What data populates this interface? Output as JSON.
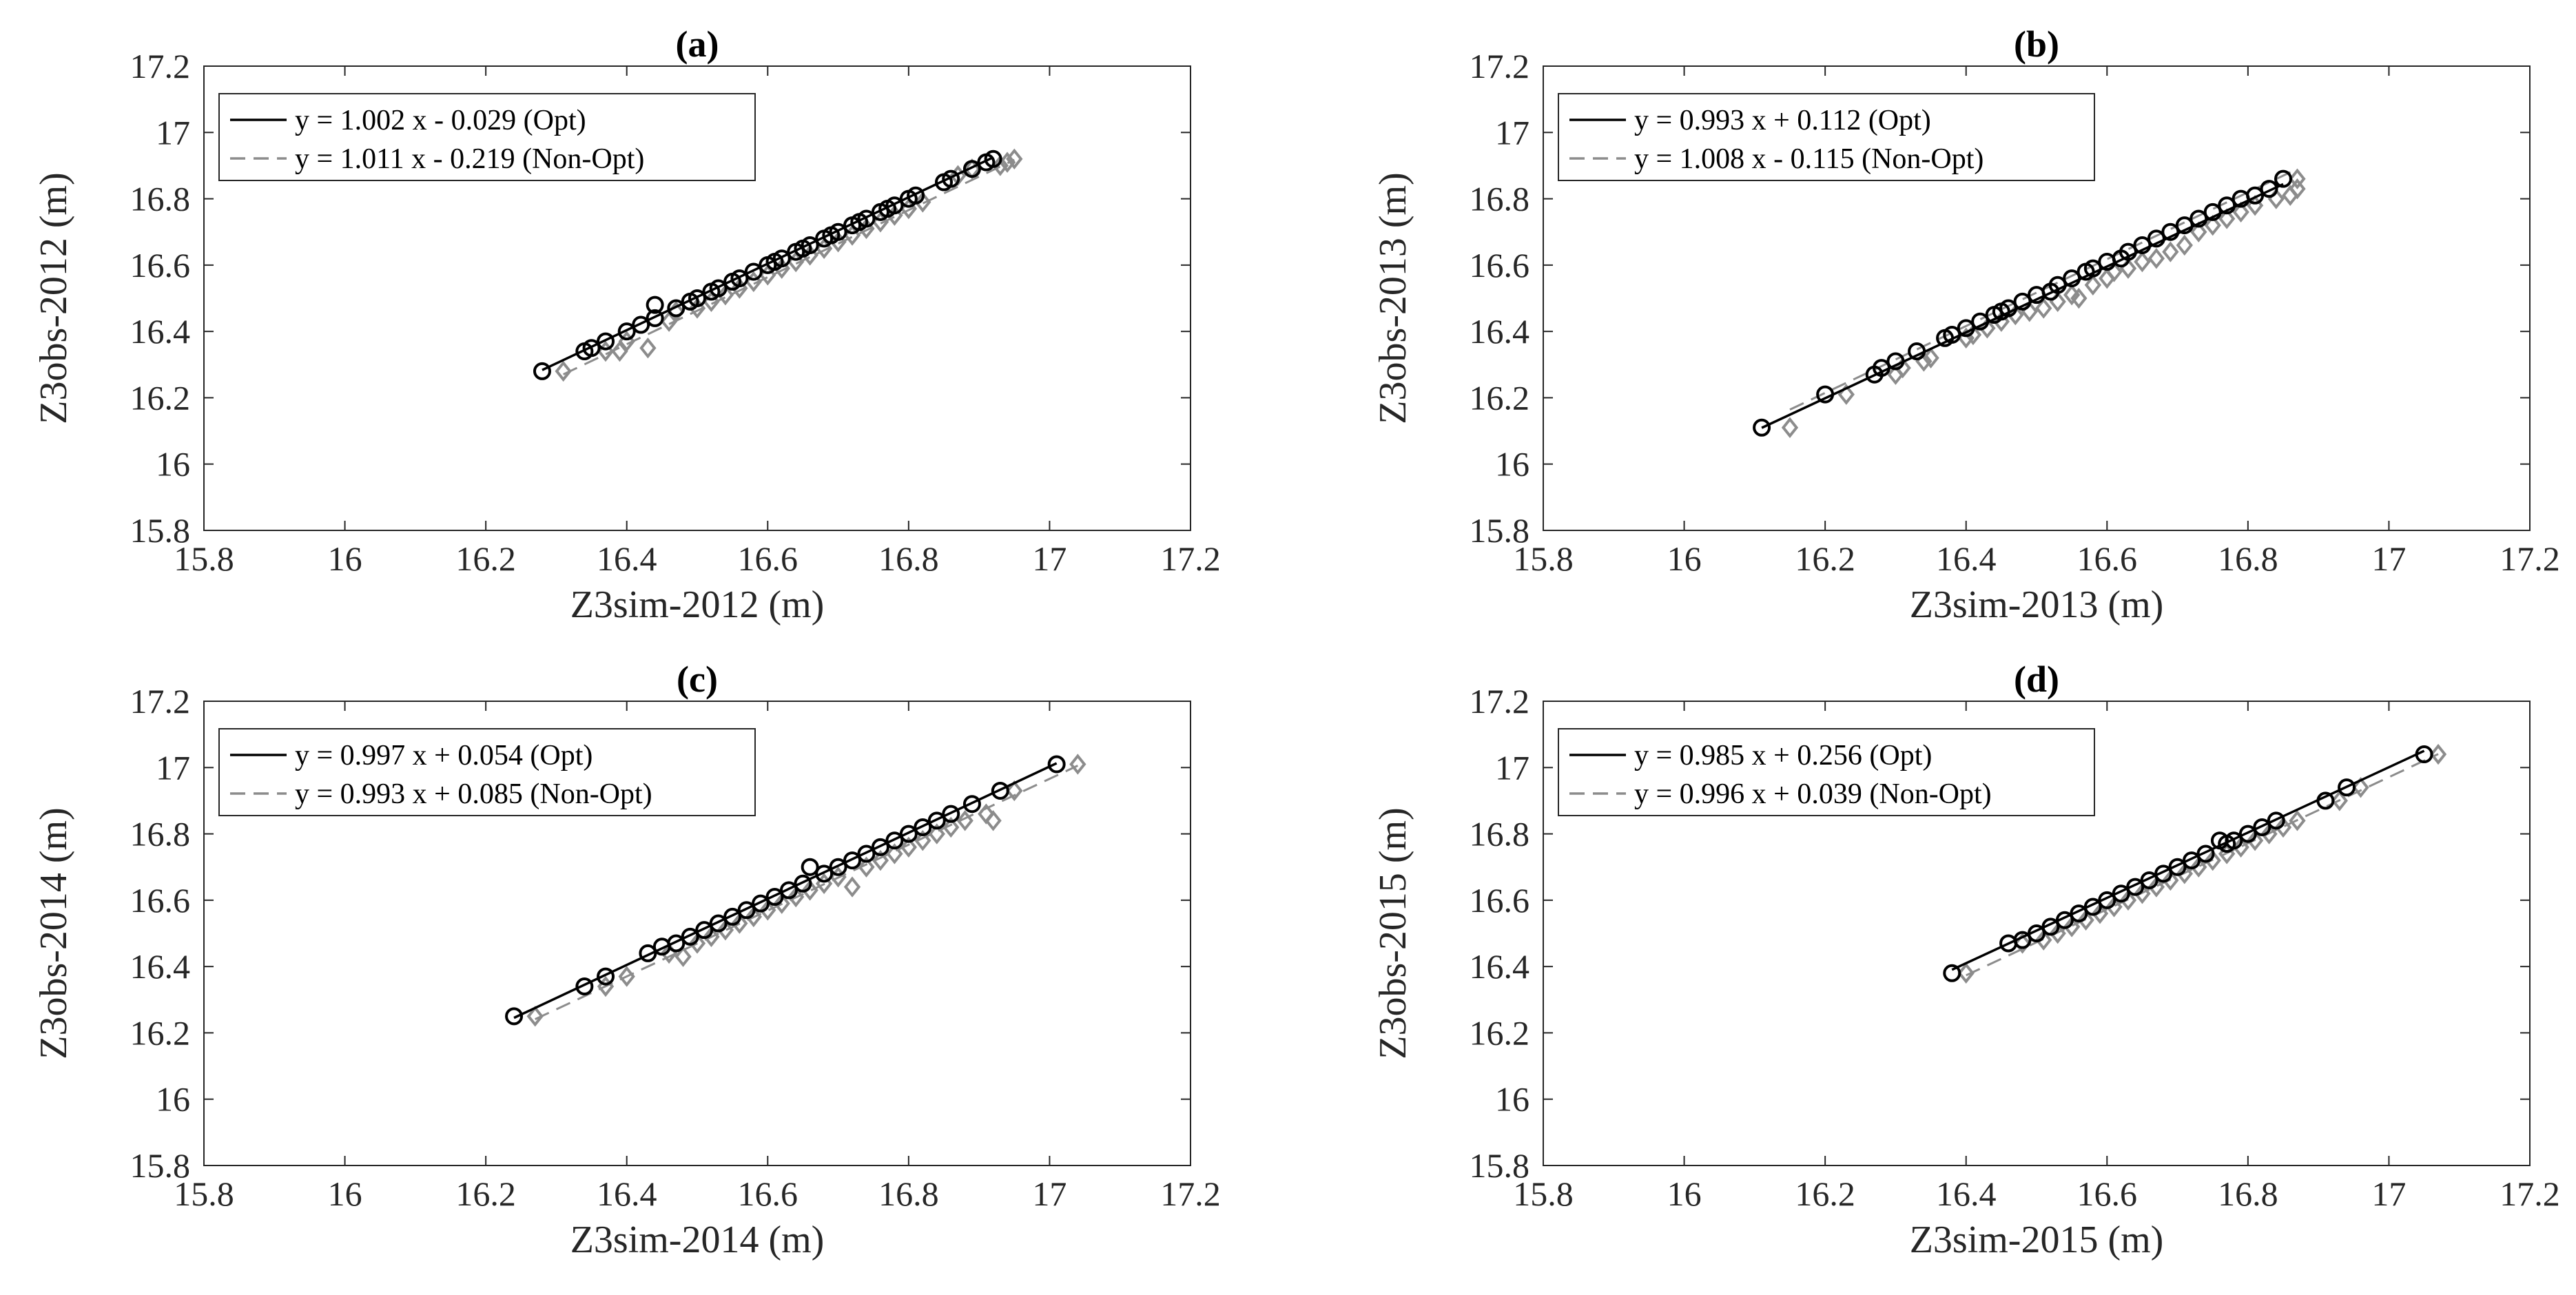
{
  "figure": {
    "description_free": true
  },
  "chart_data": [
    {
      "type": "scatter",
      "panel": "(a)",
      "title": "(a)",
      "xlabel": "Z3sim-2012 (m)",
      "ylabel": "Z3obs-2012 (m)",
      "xlim": [
        15.8,
        17.2
      ],
      "ylim": [
        15.8,
        17.2
      ],
      "ticks": [
        "15.8",
        "16",
        "16.2",
        "16.4",
        "16.6",
        "16.8",
        "17",
        "17.2"
      ],
      "legend_location": "top-left",
      "series": [
        {
          "name": "Opt",
          "marker": "circle",
          "color": "#000000",
          "fit_label": "y = 1.002 x - 0.029 (Opt)",
          "slope": 1.002,
          "intercept": -0.029,
          "line_style": "solid",
          "x": [
            16.28,
            16.34,
            16.35,
            16.37,
            16.4,
            16.42,
            16.44,
            16.44,
            16.47,
            16.49,
            16.5,
            16.52,
            16.53,
            16.55,
            16.56,
            16.58,
            16.6,
            16.61,
            16.62,
            16.64,
            16.65,
            16.66,
            16.68,
            16.69,
            16.7,
            16.72,
            16.73,
            16.74,
            16.76,
            16.77,
            16.78,
            16.8,
            16.81,
            16.85,
            16.86,
            16.89,
            16.91,
            16.92
          ],
          "y": [
            16.28,
            16.34,
            16.35,
            16.37,
            16.4,
            16.42,
            16.48,
            16.44,
            16.47,
            16.49,
            16.5,
            16.52,
            16.53,
            16.55,
            16.56,
            16.58,
            16.6,
            16.61,
            16.62,
            16.64,
            16.65,
            16.66,
            16.68,
            16.69,
            16.7,
            16.72,
            16.73,
            16.74,
            16.76,
            16.77,
            16.78,
            16.8,
            16.81,
            16.85,
            16.86,
            16.89,
            16.91,
            16.92
          ]
        },
        {
          "name": "Non-Opt",
          "marker": "diamond",
          "color": "#8c8c8c",
          "fit_label": "y = 1.011 x - 0.219 (Non-Opt)",
          "slope": 1.011,
          "intercept": -0.219,
          "line_style": "dashed",
          "x": [
            16.31,
            16.37,
            16.39,
            16.4,
            16.43,
            16.46,
            16.47,
            16.5,
            16.52,
            16.54,
            16.56,
            16.58,
            16.6,
            16.62,
            16.64,
            16.66,
            16.68,
            16.7,
            16.72,
            16.74,
            16.76,
            16.78,
            16.8,
            16.82,
            16.87,
            16.89,
            16.93,
            16.94,
            16.95
          ],
          "y": [
            16.28,
            16.34,
            16.34,
            16.37,
            16.35,
            16.43,
            16.46,
            16.47,
            16.49,
            16.51,
            16.53,
            16.55,
            16.57,
            16.59,
            16.61,
            16.63,
            16.65,
            16.67,
            16.69,
            16.71,
            16.73,
            16.75,
            16.77,
            16.79,
            16.87,
            16.89,
            16.9,
            16.91,
            16.92
          ]
        }
      ]
    },
    {
      "type": "scatter",
      "panel": "(b)",
      "title": "(b)",
      "xlabel": "Z3sim-2013 (m)",
      "ylabel": "Z3obs-2013 (m)",
      "xlim": [
        15.8,
        17.2
      ],
      "ylim": [
        15.8,
        17.2
      ],
      "ticks": [
        "15.8",
        "16",
        "16.2",
        "16.4",
        "16.6",
        "16.8",
        "17",
        "17.2"
      ],
      "legend_location": "top-left",
      "series": [
        {
          "name": "Opt",
          "marker": "circle",
          "color": "#000000",
          "fit_label": "y = 0.993 x + 0.112 (Opt)",
          "slope": 0.993,
          "intercept": 0.112,
          "line_style": "solid",
          "x": [
            16.11,
            16.2,
            16.27,
            16.28,
            16.3,
            16.33,
            16.37,
            16.38,
            16.4,
            16.42,
            16.44,
            16.45,
            16.46,
            16.48,
            16.5,
            16.52,
            16.53,
            16.55,
            16.57,
            16.58,
            16.6,
            16.62,
            16.63,
            16.65,
            16.67,
            16.69,
            16.71,
            16.73,
            16.75,
            16.77,
            16.79,
            16.81,
            16.83,
            16.85
          ],
          "y": [
            16.11,
            16.21,
            16.27,
            16.29,
            16.31,
            16.34,
            16.38,
            16.39,
            16.41,
            16.43,
            16.45,
            16.46,
            16.47,
            16.49,
            16.51,
            16.52,
            16.54,
            16.56,
            16.58,
            16.59,
            16.61,
            16.62,
            16.64,
            16.66,
            16.68,
            16.7,
            16.72,
            16.74,
            16.76,
            16.78,
            16.8,
            16.81,
            16.83,
            16.86
          ]
        },
        {
          "name": "Non-Opt",
          "marker": "diamond",
          "color": "#8c8c8c",
          "fit_label": "y = 1.008 x - 0.115 (Non-Opt)",
          "slope": 1.008,
          "intercept": -0.115,
          "line_style": "dashed",
          "x": [
            16.15,
            16.23,
            16.3,
            16.31,
            16.34,
            16.35,
            16.4,
            16.41,
            16.43,
            16.45,
            16.47,
            16.49,
            16.51,
            16.53,
            16.55,
            16.56,
            16.58,
            16.6,
            16.61,
            16.63,
            16.65,
            16.67,
            16.69,
            16.71,
            16.73,
            16.75,
            16.77,
            16.79,
            16.81,
            16.84,
            16.86,
            16.87,
            16.87
          ],
          "y": [
            16.11,
            16.21,
            16.27,
            16.29,
            16.31,
            16.32,
            16.38,
            16.39,
            16.41,
            16.43,
            16.45,
            16.46,
            16.47,
            16.49,
            16.51,
            16.5,
            16.54,
            16.56,
            16.58,
            16.59,
            16.61,
            16.62,
            16.64,
            16.66,
            16.7,
            16.72,
            16.74,
            16.76,
            16.78,
            16.8,
            16.81,
            16.83,
            16.86
          ]
        }
      ]
    },
    {
      "type": "scatter",
      "panel": "(c)",
      "title": "(c)",
      "xlabel": "Z3sim-2014 (m)",
      "ylabel": "Z3obs-2014 (m)",
      "xlim": [
        15.8,
        17.2
      ],
      "ylim": [
        15.8,
        17.2
      ],
      "ticks": [
        "15.8",
        "16",
        "16.2",
        "16.4",
        "16.6",
        "16.8",
        "17",
        "17.2"
      ],
      "legend_location": "top-left",
      "series": [
        {
          "name": "Opt",
          "marker": "circle",
          "color": "#000000",
          "fit_label": "y = 0.997 x + 0.054 (Opt)",
          "slope": 0.997,
          "intercept": 0.054,
          "line_style": "solid",
          "x": [
            16.24,
            16.34,
            16.37,
            16.43,
            16.45,
            16.47,
            16.49,
            16.51,
            16.53,
            16.55,
            16.57,
            16.59,
            16.61,
            16.63,
            16.65,
            16.66,
            16.68,
            16.7,
            16.72,
            16.74,
            16.76,
            16.78,
            16.8,
            16.82,
            16.84,
            16.86,
            16.89,
            16.93,
            17.01
          ],
          "y": [
            16.25,
            16.34,
            16.37,
            16.44,
            16.46,
            16.47,
            16.49,
            16.51,
            16.53,
            16.55,
            16.57,
            16.59,
            16.61,
            16.63,
            16.65,
            16.7,
            16.68,
            16.7,
            16.72,
            16.74,
            16.76,
            16.78,
            16.8,
            16.82,
            16.84,
            16.86,
            16.89,
            16.93,
            17.01
          ]
        },
        {
          "name": "Non-Opt",
          "marker": "diamond",
          "color": "#8c8c8c",
          "fit_label": "y = 0.993 x + 0.085 (Non-Opt)",
          "slope": 0.993,
          "intercept": 0.085,
          "line_style": "dashed",
          "x": [
            16.27,
            16.37,
            16.4,
            16.46,
            16.48,
            16.5,
            16.52,
            16.54,
            16.56,
            16.58,
            16.6,
            16.62,
            16.64,
            16.66,
            16.68,
            16.7,
            16.72,
            16.74,
            16.76,
            16.78,
            16.8,
            16.82,
            16.84,
            16.86,
            16.88,
            16.91,
            16.92,
            16.95,
            17.04
          ],
          "y": [
            16.25,
            16.34,
            16.37,
            16.44,
            16.43,
            16.47,
            16.49,
            16.51,
            16.53,
            16.55,
            16.57,
            16.59,
            16.61,
            16.63,
            16.65,
            16.67,
            16.64,
            16.7,
            16.72,
            16.74,
            16.76,
            16.78,
            16.8,
            16.82,
            16.84,
            16.86,
            16.84,
            16.93,
            17.01
          ]
        }
      ]
    },
    {
      "type": "scatter",
      "panel": "(d)",
      "title": "(d)",
      "xlabel": "Z3sim-2015 (m)",
      "ylabel": "Z3obs-2015 (m)",
      "xlim": [
        15.8,
        17.2
      ],
      "ylim": [
        15.8,
        17.2
      ],
      "ticks": [
        "15.8",
        "16",
        "16.2",
        "16.4",
        "16.6",
        "16.8",
        "17",
        "17.2"
      ],
      "legend_location": "top-left",
      "series": [
        {
          "name": "Opt",
          "marker": "circle",
          "color": "#000000",
          "fit_label": "y = 0.985 x + 0.256 (Opt)",
          "slope": 0.985,
          "intercept": 0.256,
          "line_style": "solid",
          "x": [
            16.38,
            16.46,
            16.48,
            16.5,
            16.52,
            16.54,
            16.56,
            16.58,
            16.6,
            16.62,
            16.64,
            16.66,
            16.68,
            16.7,
            16.72,
            16.74,
            16.76,
            16.77,
            16.78,
            16.8,
            16.82,
            16.84,
            16.91,
            16.94,
            17.05
          ],
          "y": [
            16.38,
            16.47,
            16.48,
            16.5,
            16.52,
            16.54,
            16.56,
            16.58,
            16.6,
            16.62,
            16.64,
            16.66,
            16.68,
            16.7,
            16.72,
            16.74,
            16.78,
            16.77,
            16.78,
            16.8,
            16.82,
            16.84,
            16.9,
            16.94,
            17.04
          ]
        },
        {
          "name": "Non-Opt",
          "marker": "diamond",
          "color": "#8c8c8c",
          "fit_label": "y = 0.996 x + 0.039 (Non-Opt)",
          "slope": 0.996,
          "intercept": 0.039,
          "line_style": "dashed",
          "x": [
            16.4,
            16.48,
            16.51,
            16.53,
            16.55,
            16.57,
            16.59,
            16.61,
            16.63,
            16.65,
            16.67,
            16.69,
            16.71,
            16.73,
            16.75,
            16.77,
            16.79,
            16.81,
            16.83,
            16.85,
            16.87,
            16.93,
            16.96,
            17.07
          ],
          "y": [
            16.38,
            16.47,
            16.48,
            16.5,
            16.52,
            16.54,
            16.56,
            16.58,
            16.6,
            16.62,
            16.64,
            16.66,
            16.68,
            16.7,
            16.72,
            16.74,
            16.76,
            16.78,
            16.8,
            16.82,
            16.84,
            16.9,
            16.94,
            17.04
          ]
        }
      ]
    }
  ]
}
